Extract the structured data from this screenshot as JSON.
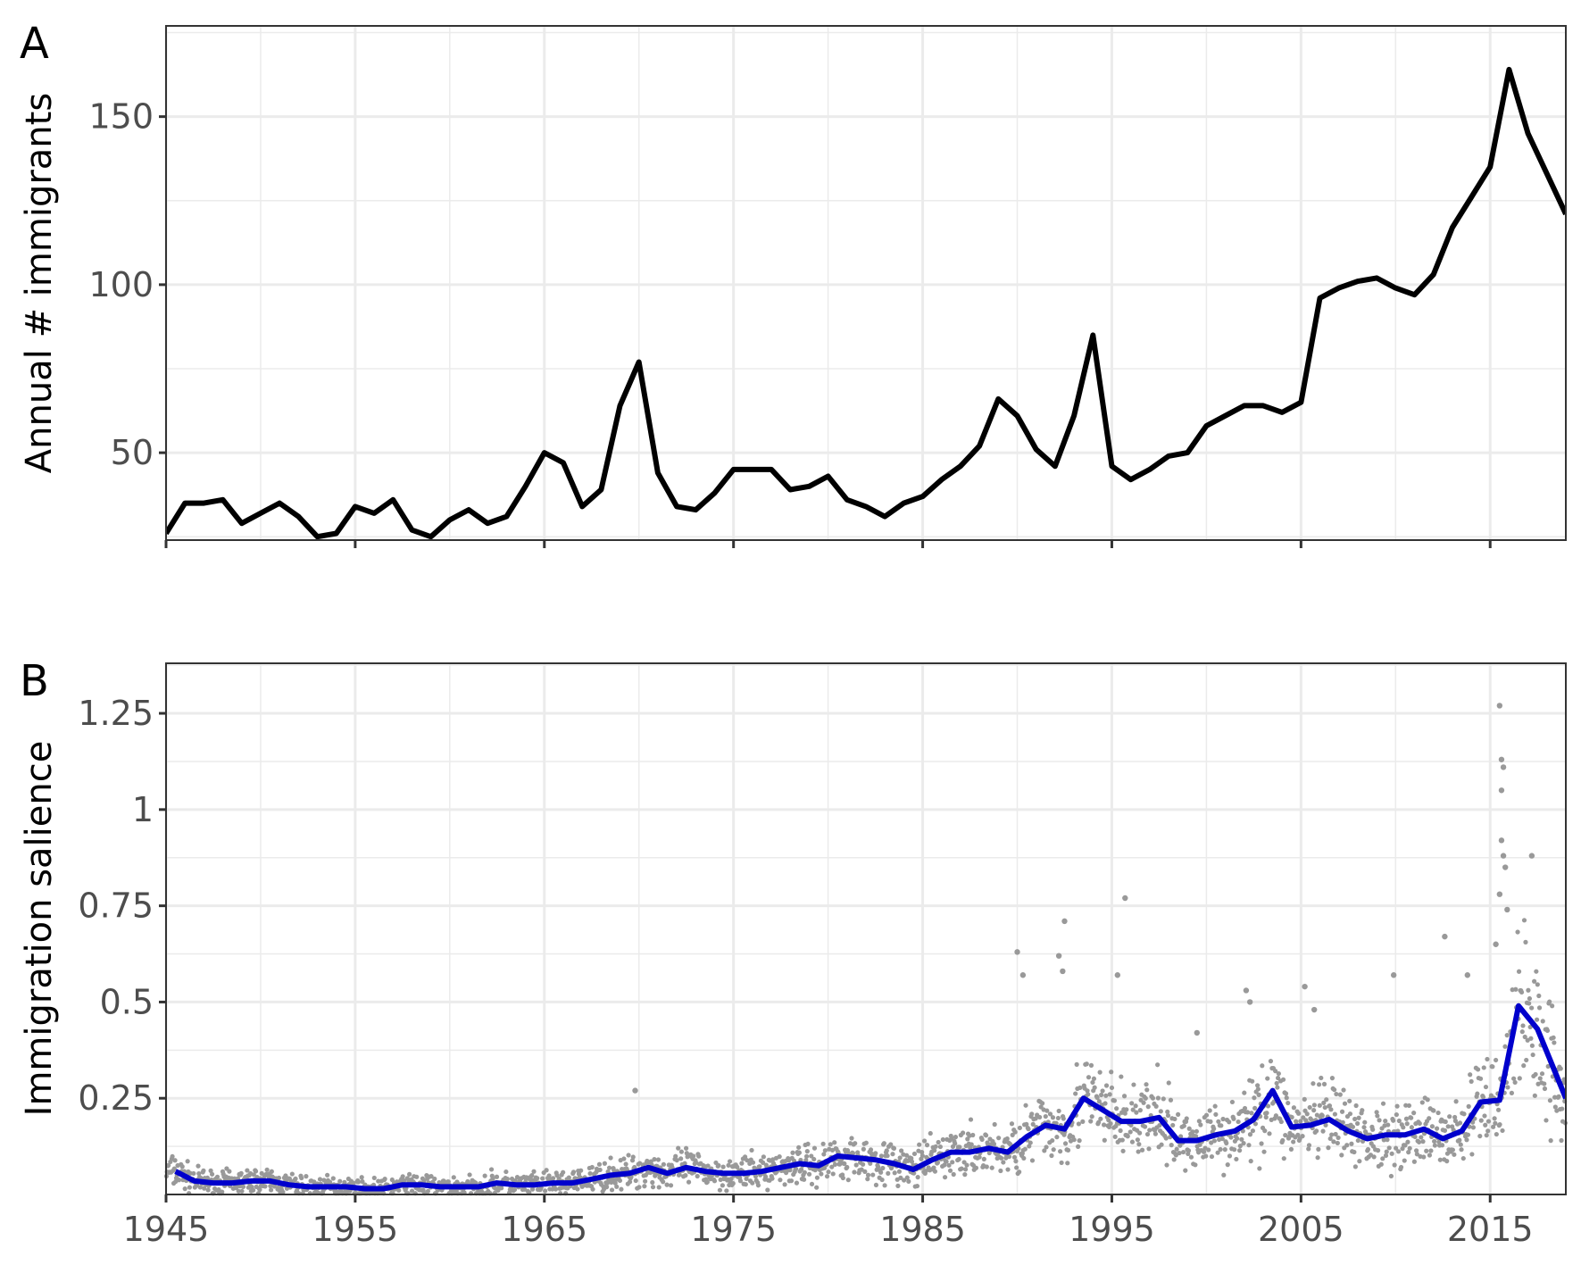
{
  "chart_data": [
    {
      "type": "line",
      "tag": "A",
      "ylabel": "Annual # immigrants",
      "xlim": [
        1945,
        2019
      ],
      "ylim": [
        24,
        177
      ],
      "yticks": [
        50,
        100,
        150
      ],
      "ytick_labels": [
        "50",
        "100",
        "150"
      ],
      "xticks": [
        1945,
        1955,
        1965,
        1975,
        1985,
        1995,
        2005,
        2015
      ],
      "grid": true,
      "series": [
        {
          "color": "#000000",
          "x": [
            1945,
            1946,
            1947,
            1948,
            1949,
            1950,
            1951,
            1952,
            1953,
            1954,
            1955,
            1956,
            1957,
            1958,
            1959,
            1960,
            1961,
            1962,
            1963,
            1964,
            1965,
            1966,
            1967,
            1968,
            1969,
            1970,
            1971,
            1972,
            1973,
            1974,
            1975,
            1976,
            1977,
            1978,
            1979,
            1980,
            1981,
            1982,
            1983,
            1984,
            1985,
            1986,
            1987,
            1988,
            1989,
            1990,
            1991,
            1992,
            1993,
            1994,
            1995,
            1996,
            1997,
            1998,
            1999,
            2000,
            2001,
            2002,
            2003,
            2004,
            2005,
            2006,
            2007,
            2008,
            2009,
            2010,
            2011,
            2012,
            2013,
            2014,
            2015,
            2016,
            2017,
            2018,
            2019
          ],
          "y": [
            26,
            35,
            35,
            36,
            29,
            32,
            35,
            31,
            25,
            26,
            34,
            32,
            36,
            27,
            25,
            30,
            33,
            29,
            31,
            40,
            50,
            47,
            34,
            39,
            64,
            77,
            44,
            34,
            33,
            38,
            45,
            45,
            45,
            39,
            40,
            43,
            36,
            34,
            31,
            35,
            37,
            42,
            46,
            52,
            66,
            61,
            51,
            46,
            61,
            85,
            46,
            42,
            45,
            49,
            50,
            58,
            61,
            64,
            64,
            62,
            65,
            96,
            99,
            101,
            102,
            99,
            97,
            103,
            117,
            126,
            135,
            164,
            145,
            133,
            121
          ]
        }
      ]
    },
    {
      "type": "scatter",
      "tag": "B",
      "ylabel": "Immigration salience",
      "xlim": [
        1945,
        2019
      ],
      "ylim": [
        0,
        1.38
      ],
      "yticks": [
        0.25,
        0.5,
        0.75,
        1,
        1.25
      ],
      "ytick_labels": [
        "0.25",
        "0.5",
        "0.75",
        "1",
        "1.25"
      ],
      "xticks": [
        1945,
        1955,
        1965,
        1975,
        1985,
        1995,
        2005,
        2015
      ],
      "xtick_labels": [
        "1945",
        "1955",
        "1965",
        "1975",
        "1985",
        "1995",
        "2005",
        "2015"
      ],
      "grid": true,
      "points_color": "#999999",
      "points_note": "daily observations scattered around the annual average line",
      "highlight_points": [
        {
          "x": 1969.8,
          "y": 0.27
        },
        {
          "x": 1990.0,
          "y": 0.63
        },
        {
          "x": 1990.3,
          "y": 0.57
        },
        {
          "x": 1992.2,
          "y": 0.62
        },
        {
          "x": 1992.5,
          "y": 0.71
        },
        {
          "x": 1992.4,
          "y": 0.58
        },
        {
          "x": 1995.3,
          "y": 0.57
        },
        {
          "x": 1995.7,
          "y": 0.77
        },
        {
          "x": 1999.5,
          "y": 0.42
        },
        {
          "x": 2002.1,
          "y": 0.53
        },
        {
          "x": 2002.3,
          "y": 0.5
        },
        {
          "x": 2005.2,
          "y": 0.54
        },
        {
          "x": 2005.7,
          "y": 0.48
        },
        {
          "x": 2009.9,
          "y": 0.57
        },
        {
          "x": 2012.6,
          "y": 0.67
        },
        {
          "x": 2013.8,
          "y": 0.57
        },
        {
          "x": 2015.5,
          "y": 1.27
        },
        {
          "x": 2015.6,
          "y": 1.13
        },
        {
          "x": 2015.7,
          "y": 1.11
        },
        {
          "x": 2015.6,
          "y": 1.05
        },
        {
          "x": 2015.6,
          "y": 0.92
        },
        {
          "x": 2015.7,
          "y": 0.88
        },
        {
          "x": 2015.8,
          "y": 0.85
        },
        {
          "x": 2017.2,
          "y": 0.88
        },
        {
          "x": 2015.5,
          "y": 0.78
        },
        {
          "x": 2015.9,
          "y": 0.74
        },
        {
          "x": 2015.3,
          "y": 0.65
        }
      ],
      "series": [
        {
          "color": "#0000cc",
          "x": [
            1945.5,
            1946.5,
            1947.5,
            1948.5,
            1949.5,
            1950.5,
            1951.5,
            1952.5,
            1953.5,
            1954.5,
            1955.5,
            1956.5,
            1957.5,
            1958.5,
            1959.5,
            1960.5,
            1961.5,
            1962.5,
            1963.5,
            1964.5,
            1965.5,
            1966.5,
            1967.5,
            1968.5,
            1969.5,
            1970.5,
            1971.5,
            1972.5,
            1973.5,
            1974.5,
            1975.5,
            1976.5,
            1977.5,
            1978.5,
            1979.5,
            1980.5,
            1981.5,
            1982.5,
            1983.5,
            1984.5,
            1985.5,
            1986.5,
            1987.5,
            1988.5,
            1989.5,
            1990.5,
            1991.5,
            1992.5,
            1993.5,
            1994.5,
            1995.5,
            1996.5,
            1997.5,
            1998.5,
            1999.5,
            2000.5,
            2001.5,
            2002.5,
            2003.5,
            2004.5,
            2005.5,
            2006.5,
            2007.5,
            2008.5,
            2009.5,
            2010.5,
            2011.5,
            2012.5,
            2013.5,
            2014.5,
            2015.5,
            2016.5,
            2017.5,
            2018.5,
            2019.0
          ],
          "y": [
            0.06,
            0.035,
            0.03,
            0.03,
            0.035,
            0.035,
            0.025,
            0.02,
            0.02,
            0.02,
            0.015,
            0.015,
            0.025,
            0.025,
            0.02,
            0.02,
            0.02,
            0.03,
            0.025,
            0.025,
            0.03,
            0.03,
            0.04,
            0.05,
            0.055,
            0.07,
            0.055,
            0.07,
            0.06,
            0.055,
            0.055,
            0.06,
            0.07,
            0.08,
            0.075,
            0.1,
            0.095,
            0.09,
            0.08,
            0.065,
            0.09,
            0.11,
            0.11,
            0.12,
            0.11,
            0.15,
            0.18,
            0.17,
            0.25,
            0.22,
            0.19,
            0.19,
            0.2,
            0.14,
            0.14,
            0.155,
            0.165,
            0.195,
            0.27,
            0.175,
            0.18,
            0.195,
            0.165,
            0.145,
            0.155,
            0.155,
            0.17,
            0.145,
            0.165,
            0.24,
            0.245,
            0.49,
            0.43,
            0.31,
            0.25
          ]
        }
      ]
    }
  ]
}
